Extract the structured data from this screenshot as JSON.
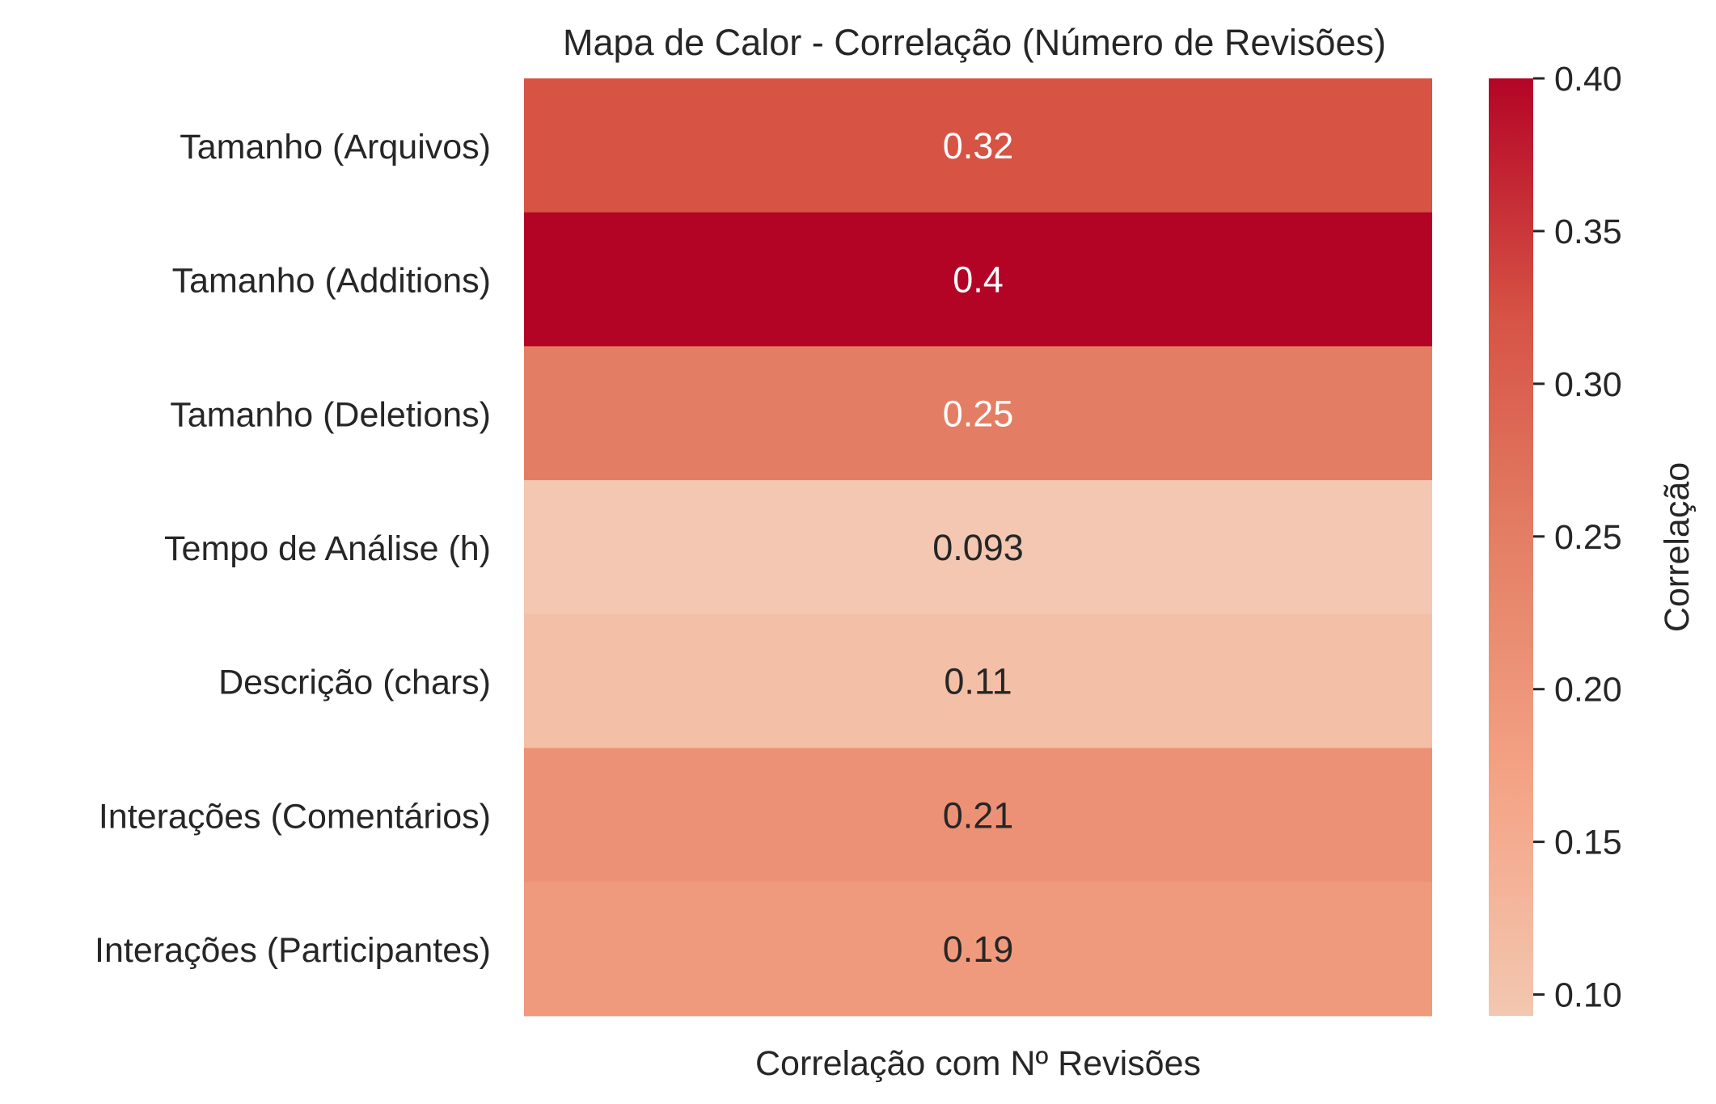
{
  "chart_data": {
    "type": "heatmap",
    "title": "Mapa de Calor - Correlação (Número de Revisões)",
    "xlabel": "",
    "ylabel": "",
    "x_categories": [
      "Correlação com Nº Revisões"
    ],
    "y_categories": [
      "Tamanho (Arquivos)",
      "Tamanho (Additions)",
      "Tamanho (Deletions)",
      "Tempo de Análise (h)",
      "Descrição (chars)",
      "Interações (Comentários)",
      "Interações (Participantes)"
    ],
    "values": [
      0.32,
      0.4,
      0.25,
      0.093,
      0.11,
      0.21,
      0.19
    ],
    "annotations": [
      "0.32",
      "0.4",
      "0.25",
      "0.093",
      "0.11",
      "0.21",
      "0.19"
    ],
    "colorbar": {
      "label": "Correlação",
      "range": [
        0.093,
        0.4
      ],
      "ticks": [
        "0.10",
        "0.15",
        "0.20",
        "0.25",
        "0.30",
        "0.35",
        "0.40"
      ],
      "tick_values": [
        0.1,
        0.15,
        0.2,
        0.25,
        0.3,
        0.35,
        0.4
      ]
    },
    "colors": {
      "scale_low": "#f3c7b1",
      "scale_mid1": "#f4a385",
      "scale_mid2": "#e48066",
      "scale_mid3": "#d65244",
      "scale_high": "#b40426",
      "annotation_dark": "#262626",
      "annotation_light": "#ffffff"
    }
  }
}
